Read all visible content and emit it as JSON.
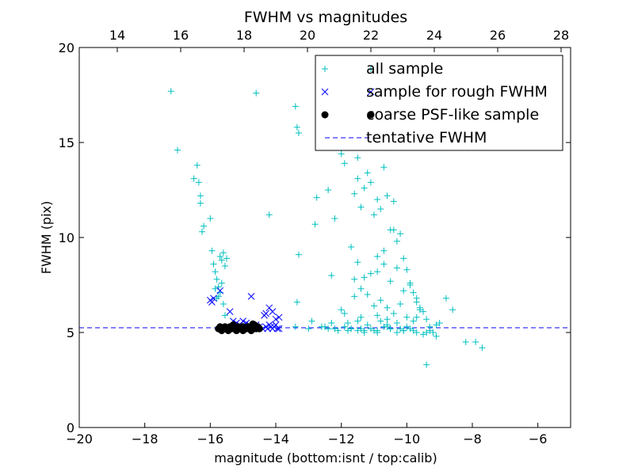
{
  "chart_data": {
    "type": "scatter",
    "title": "FWHM vs magnitudes",
    "xlabel": "magnitude (bottom:isnt / top:calib)",
    "ylabel": "FWHM (pix)",
    "xlim": [
      -20,
      -5
    ],
    "ylim": [
      0,
      20
    ],
    "top_xlim": [
      12.8,
      28.3
    ],
    "x_ticks": [
      -20,
      -18,
      -16,
      -14,
      -12,
      -10,
      -8,
      -6
    ],
    "x_tick_labels": [
      "−20",
      "−18",
      "−16",
      "−14",
      "−12",
      "−10",
      "−8",
      "−6"
    ],
    "y_ticks": [
      0,
      5,
      10,
      15,
      20
    ],
    "y_tick_labels": [
      "0",
      "5",
      "10",
      "15",
      "20"
    ],
    "top_x_ticks": [
      14,
      16,
      18,
      20,
      22,
      24,
      26,
      28
    ],
    "top_x_tick_labels": [
      "14",
      "16",
      "18",
      "20",
      "22",
      "24",
      "26",
      "28"
    ],
    "legend_position": "top-right",
    "colors": {
      "all_sample": "#00bfbf",
      "rough_fwhm": "#0000ff",
      "psf_like": "#000000",
      "tentative": "#0000ff"
    },
    "series": [
      {
        "name": "all sample",
        "marker": "plus",
        "x": [
          -17.2,
          -17.0,
          -16.5,
          -16.4,
          -16.35,
          -16.3,
          -16.3,
          -16.25,
          -16.2,
          -16.0,
          -15.95,
          -15.9,
          -15.85,
          -15.8,
          -15.75,
          -15.7,
          -15.65,
          -15.6,
          -15.55,
          -15.5,
          -15.75,
          -15.7,
          -15.65,
          -15.6,
          -15.55,
          -15.8,
          -15.85,
          -14.6,
          -14.2,
          -13.4,
          -13.35,
          -13.3,
          -13.3,
          -13.35,
          -12.8,
          -12.75,
          -12.4,
          -12.2,
          -12.0,
          -11.9,
          -11.8,
          -11.6,
          -11.5,
          -11.4,
          -11.3,
          -11.2,
          -11.1,
          -11.0,
          -10.9,
          -10.8,
          -10.7,
          -10.6,
          -10.5,
          -10.4,
          -10.3,
          -10.2,
          -10.1,
          -10.0,
          -9.9,
          -9.8,
          -9.7,
          -9.6,
          -9.5,
          -9.4,
          -9.3,
          -9.2,
          -9.1,
          -9.0,
          -8.8,
          -8.6,
          -8.2,
          -7.9,
          -7.7,
          -9.4,
          -11.7,
          -11.5,
          -11.3,
          -11.1,
          -10.9,
          -10.7,
          -10.5,
          -10.3,
          -10.1,
          -9.9,
          -9.7,
          -11.6,
          -11.4,
          -11.2,
          -11.0,
          -10.8,
          -10.6,
          -10.4,
          -10.2,
          -10.0,
          -9.8,
          -9.6,
          -11.8,
          -11.5,
          -11.2,
          -10.9,
          -10.6,
          -10.3,
          -10.0,
          -9.7,
          -11.7,
          -11.3,
          -10.9,
          -10.5,
          -10.1,
          -13.4,
          -13.0,
          -12.6,
          -12.2,
          -11.8,
          -11.4,
          -11.0,
          -10.6,
          -10.2,
          -9.8,
          -9.4,
          -12.4,
          -12.1,
          -11.9,
          -11.7,
          -11.5,
          -11.3,
          -11.1,
          -10.9,
          -10.7,
          -10.5,
          -10.3,
          -10.1,
          -9.9,
          -9.7,
          -9.5,
          -9.3,
          -9.1,
          -12.9,
          -12.5,
          -12.3,
          -12.0,
          -11.9,
          -11.4,
          -10.8,
          -10.6,
          -12.3,
          -11.6,
          -10.9,
          -10.7,
          -10.4,
          -11.9,
          -11.5
        ],
        "y": [
          17.7,
          14.6,
          13.1,
          13.8,
          12.9,
          12.2,
          11.8,
          10.3,
          10.6,
          11.0,
          9.3,
          8.6,
          8.2,
          7.8,
          7.4,
          9.0,
          8.8,
          9.2,
          8.5,
          8.9,
          6.9,
          7.1,
          7.6,
          6.5,
          5.9,
          6.8,
          7.3,
          17.6,
          11.2,
          16.9,
          15.8,
          15.5,
          9.1,
          6.6,
          10.7,
          12.1,
          12.5,
          11.0,
          14.4,
          15.6,
          16.2,
          12.3,
          13.1,
          11.6,
          12.6,
          13.4,
          12.9,
          11.2,
          12.0,
          11.5,
          13.7,
          12.2,
          10.4,
          11.9,
          9.8,
          10.2,
          8.9,
          8.3,
          7.6,
          7.1,
          6.8,
          6.3,
          6.1,
          5.7,
          5.3,
          5.0,
          4.8,
          5.5,
          6.8,
          6.2,
          4.5,
          4.5,
          4.2,
          3.3,
          9.5,
          8.7,
          7.9,
          8.1,
          9.0,
          8.6,
          7.7,
          8.4,
          7.2,
          7.5,
          6.6,
          6.9,
          7.3,
          7.0,
          6.4,
          6.7,
          6.3,
          6.0,
          6.5,
          5.8,
          5.6,
          6.2,
          5.5,
          5.6,
          5.4,
          5.9,
          5.7,
          5.5,
          5.3,
          5.8,
          5.2,
          5.1,
          5.0,
          5.2,
          5.1,
          5.3,
          5.2,
          5.3,
          5.2,
          5.1,
          5.2,
          5.1,
          5.3,
          5.2,
          5.1,
          5.0,
          5.2,
          5.1,
          5.3,
          5.2,
          5.1,
          5.0,
          5.2,
          5.1,
          5.3,
          5.2,
          5.0,
          5.1,
          5.2,
          5.0,
          4.9,
          5.1,
          5.4,
          5.6,
          5.3,
          5.5,
          6.2,
          6.0,
          5.8,
          5.6,
          5.4,
          8.0,
          7.8,
          8.2,
          9.3,
          10.4,
          13.9,
          14.2
        ]
      },
      {
        "name": "sample for rough FWHM",
        "marker": "x",
        "x": [
          -16.0,
          -15.95,
          -15.9,
          -15.7,
          -15.4,
          -15.3,
          -15.2,
          -15.1,
          -15.0,
          -14.9,
          -14.8,
          -14.7,
          -14.6,
          -14.5,
          -14.4,
          -14.3,
          -14.25,
          -14.2,
          -14.15,
          -14.1,
          -14.05,
          -14.0,
          -13.95,
          -13.9,
          -14.35,
          -14.3,
          -14.2,
          -14.1,
          -14.0,
          -13.9,
          -14.75
        ],
        "y": [
          6.7,
          6.6,
          6.8,
          7.2,
          6.1,
          5.6,
          5.5,
          5.4,
          5.6,
          5.5,
          5.4,
          5.3,
          5.4,
          5.3,
          5.2,
          5.3,
          5.2,
          5.4,
          5.3,
          5.2,
          5.3,
          5.4,
          5.2,
          5.2,
          5.9,
          6.0,
          6.3,
          6.1,
          5.7,
          5.8,
          6.9
        ]
      },
      {
        "name": "coarse PSF-like sample",
        "marker": "dot",
        "x": [
          -15.75,
          -15.7,
          -15.65,
          -15.6,
          -15.55,
          -15.5,
          -15.45,
          -15.4,
          -15.35,
          -15.3,
          -15.25,
          -15.2,
          -15.15,
          -15.1,
          -15.05,
          -15.0,
          -14.95,
          -14.9,
          -14.85,
          -14.8,
          -14.75,
          -14.7,
          -14.65,
          -14.6,
          -14.55,
          -14.5,
          -15.3,
          -15.0,
          -14.7
        ],
        "y": [
          5.2,
          5.3,
          5.1,
          5.2,
          5.3,
          5.2,
          5.1,
          5.3,
          5.2,
          5.4,
          5.2,
          5.1,
          5.3,
          5.2,
          5.3,
          5.1,
          5.2,
          5.2,
          5.3,
          5.2,
          5.1,
          5.3,
          5.4,
          5.2,
          5.3,
          5.2,
          5.35,
          5.3,
          5.45
        ]
      },
      {
        "name": "tentative FWHM",
        "marker": "dashed-line",
        "y_constant": 5.25
      }
    ]
  }
}
